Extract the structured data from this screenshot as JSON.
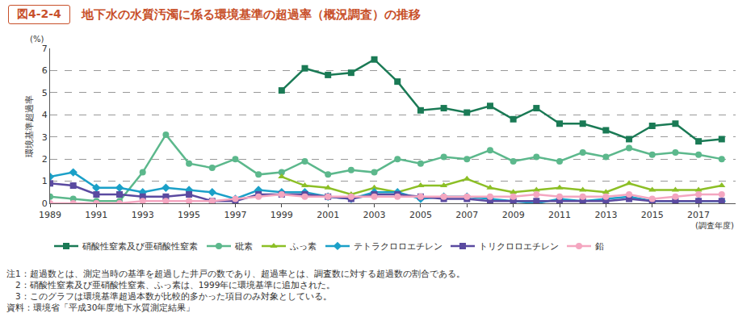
{
  "chart_data": {
    "type": "line",
    "figure_label": "図4-2-4",
    "title": "地下水の水質汚濁に係る環境基準の超過率（概況調査）の推移",
    "y_label": "環境基準超過率",
    "y_unit": "(%)",
    "x_label": "(調査年度)",
    "x": [
      1989,
      1990,
      1991,
      1992,
      1993,
      1994,
      1995,
      1996,
      1997,
      1998,
      1999,
      2000,
      2001,
      2002,
      2003,
      2004,
      2005,
      2006,
      2007,
      2008,
      2009,
      2010,
      2011,
      2012,
      2013,
      2014,
      2015,
      2016,
      2017,
      2018
    ],
    "series": [
      {
        "name": "硝酸性窒素及び亜硝酸性窒素",
        "color": "#1a7a55",
        "marker": "square",
        "values": [
          null,
          null,
          null,
          null,
          null,
          null,
          null,
          null,
          null,
          null,
          5.1,
          6.1,
          5.8,
          5.9,
          6.5,
          5.5,
          4.2,
          4.3,
          4.1,
          4.4,
          3.8,
          4.3,
          3.6,
          3.6,
          3.3,
          2.9,
          3.5,
          3.6,
          2.8,
          2.9
        ]
      },
      {
        "name": "砒素",
        "color": "#5cb88c",
        "marker": "circle",
        "values": [
          0.3,
          0.2,
          0.1,
          0.1,
          1.4,
          3.1,
          1.8,
          1.6,
          2.0,
          1.3,
          1.4,
          1.9,
          1.3,
          1.5,
          1.4,
          2.0,
          1.8,
          2.1,
          2.0,
          2.4,
          1.9,
          2.1,
          1.9,
          2.3,
          2.1,
          2.5,
          2.2,
          2.3,
          2.2,
          2.0
        ]
      },
      {
        "name": "ふっ素",
        "color": "#8cbf26",
        "marker": "triangle",
        "values": [
          null,
          null,
          null,
          null,
          null,
          null,
          null,
          null,
          null,
          null,
          1.2,
          0.8,
          0.7,
          0.4,
          0.7,
          0.5,
          0.8,
          0.8,
          1.1,
          0.7,
          0.5,
          0.6,
          0.7,
          0.6,
          0.5,
          0.9,
          0.6,
          0.6,
          0.6,
          0.8
        ]
      },
      {
        "name": "テトラクロロエチレン",
        "color": "#1ba0c8",
        "marker": "diamond",
        "values": [
          1.2,
          1.4,
          0.7,
          0.7,
          0.5,
          0.7,
          0.6,
          0.5,
          0.2,
          0.6,
          0.5,
          0.5,
          0.3,
          0.2,
          0.5,
          0.5,
          0.2,
          0.3,
          0.3,
          0.2,
          0.1,
          0.0,
          0.2,
          0.1,
          0.2,
          0.3,
          0.1,
          0.1,
          0.1,
          0.1
        ]
      },
      {
        "name": "トリクロロエチレン",
        "color": "#5a4aa0",
        "marker": "square",
        "values": [
          0.9,
          0.8,
          0.4,
          0.4,
          0.3,
          0.3,
          0.4,
          0.1,
          0.1,
          0.4,
          0.4,
          0.4,
          0.3,
          0.2,
          0.4,
          0.4,
          0.3,
          0.2,
          0.2,
          0.1,
          0.1,
          0.1,
          0.1,
          0.1,
          0.1,
          0.2,
          0.1,
          0.1,
          0.1,
          0.1
        ]
      },
      {
        "name": "鉛",
        "color": "#f4a6c0",
        "marker": "circle",
        "values": [
          0.0,
          0.0,
          0.0,
          0.0,
          0.1,
          0.1,
          0.1,
          0.1,
          0.2,
          0.3,
          0.4,
          0.3,
          0.3,
          0.3,
          0.3,
          0.3,
          0.3,
          0.3,
          0.3,
          0.3,
          0.3,
          0.4,
          0.3,
          0.3,
          0.3,
          0.4,
          0.2,
          0.3,
          0.4,
          0.4
        ]
      }
    ],
    "xlim": [
      1989,
      2018.6
    ],
    "xticks": [
      1989,
      1991,
      1993,
      1995,
      1997,
      1999,
      2001,
      2003,
      2005,
      2007,
      2009,
      2011,
      2013,
      2015,
      2017
    ],
    "ylim": [
      0,
      7
    ],
    "yticks": [
      0,
      1,
      2,
      3,
      4,
      5,
      6,
      7
    ],
    "grid": true,
    "legend": "bottom",
    "notes": [
      "注1：超過数とは、測定当時の基準を超過した井戸の数であり、超過率とは、調査数に対する超過数の割合である。",
      "　2：硝酸性窒素及び亜硝酸性窒素、ふっ素は、1999年に環境基準に追加された。",
      "　3：このグラフは環境基準超過本数が比較的多かった項目のみ対象としている。"
    ],
    "source": "資料：環境省「平成30年度地下水質測定結果」"
  }
}
